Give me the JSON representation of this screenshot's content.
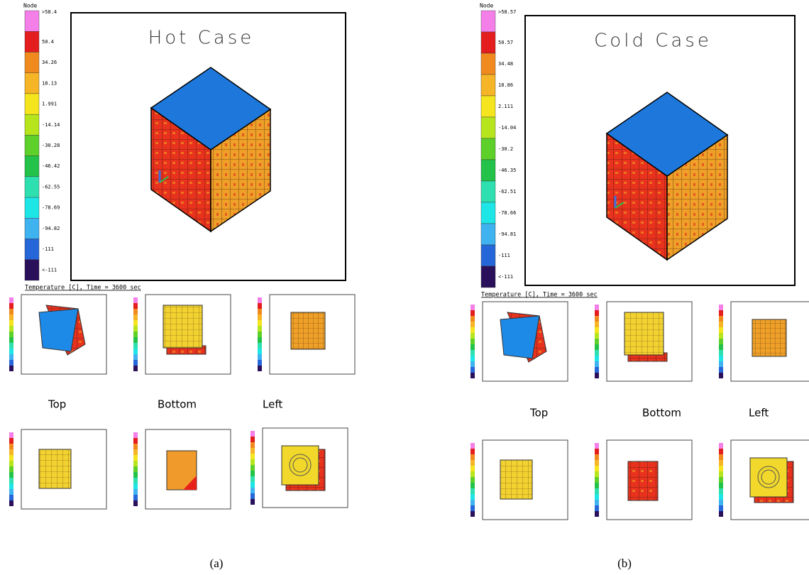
{
  "panels": [
    {
      "title": "Hot Case",
      "legend_header": "Node",
      "legend_labels": [
        ">58.4",
        "50.4",
        "34.26",
        "18.13",
        "1.991",
        "-14.14",
        "-30.28",
        "-46.42",
        "-62.55",
        "-78.69",
        "-94.82",
        "-111",
        "<-111"
      ],
      "footer": "Temperature [C], Time = 3600 sec",
      "views": [
        "Top",
        "Bottom",
        "Left"
      ],
      "caption": "(a)"
    },
    {
      "title": "Cold Case",
      "legend_header": "Node",
      "legend_labels": [
        ">58.57",
        "50.57",
        "34.48",
        "18.86",
        "2.111",
        "-14.04",
        "-30.2",
        "-46.35",
        "-62.51",
        "-78.66",
        "-94.81",
        "-111",
        "<-111"
      ],
      "footer": "Temperature [C], Time = 3600 sec",
      "views": [
        "Top",
        "Bottom",
        "Left"
      ],
      "caption": "(b)"
    }
  ]
}
